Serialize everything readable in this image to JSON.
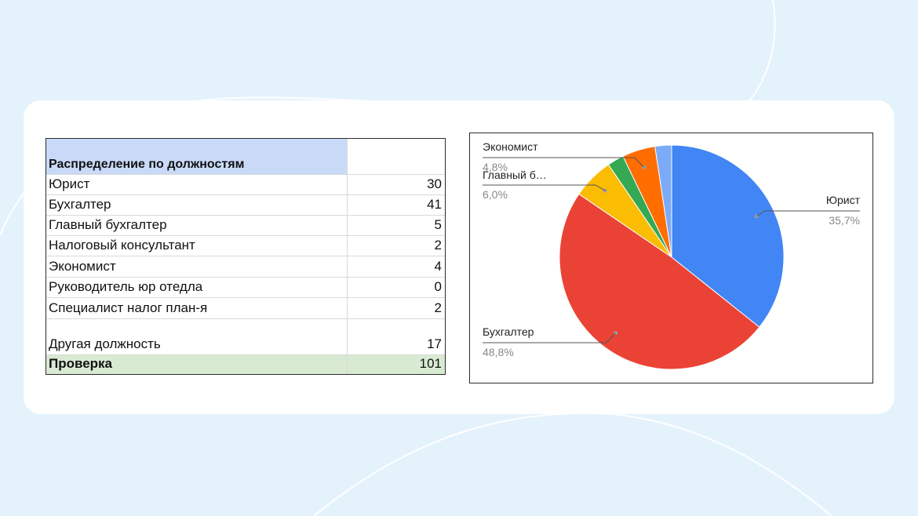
{
  "table": {
    "header": "Распределение по должностям",
    "rows": [
      {
        "label": "Юрист",
        "value": "30"
      },
      {
        "label": "Бухгалтер",
        "value": "41"
      },
      {
        "label": "Главный бухгалтер",
        "value": "5"
      },
      {
        "label": "Налоговый консультант",
        "value": "2"
      },
      {
        "label": "Экономист",
        "value": "4"
      },
      {
        "label": "Руководитель юр отедла",
        "value": "0"
      },
      {
        "label": "Специалист налог план-я",
        "value": "2"
      },
      {
        "label": "Другая должность",
        "value": "17"
      }
    ],
    "total": {
      "label": "Проверка",
      "value": "101"
    }
  },
  "chart_data": {
    "type": "pie",
    "slices": [
      {
        "label": "Юрист",
        "value": 30,
        "pct": "35,7%",
        "color": "#4285f4"
      },
      {
        "label": "Бухгалтер",
        "value": 41,
        "pct": "48,8%",
        "color": "#ea4335"
      },
      {
        "label": "Главный б…",
        "value": 5,
        "pct": "6,0%",
        "color": "#fbbc04"
      },
      {
        "label": "",
        "value": 2,
        "pct": "",
        "color": "#34a853"
      },
      {
        "label": "Экономист",
        "value": 4,
        "pct": "4,8%",
        "color": "#ff6d01"
      },
      {
        "label": "",
        "value": 0,
        "pct": "",
        "color": "#46bdc6"
      },
      {
        "label": "",
        "value": 2,
        "pct": "",
        "color": "#7baaf7"
      }
    ],
    "legend": "none"
  },
  "colors": {
    "background": "#e4f2fc",
    "card": "#ffffff",
    "header_fill": "#c9daf8",
    "total_fill": "#d9ead3"
  }
}
